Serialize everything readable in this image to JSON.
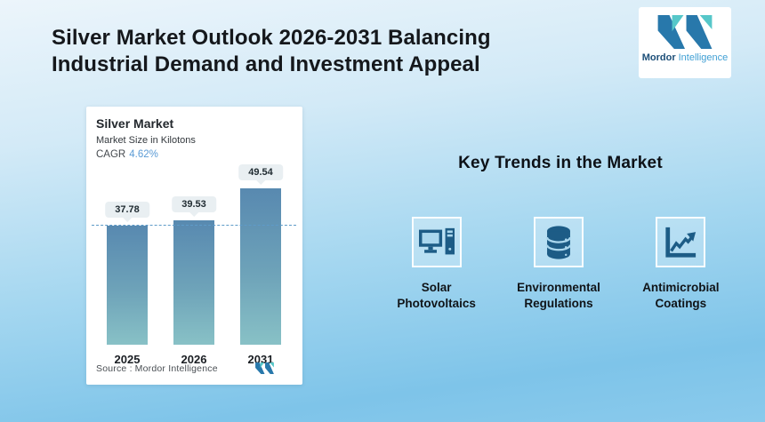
{
  "page": {
    "title_line1": "Silver Market Outlook 2026-2031 Balancing",
    "title_line2": "Industrial Demand and Investment Appeal"
  },
  "brand": {
    "name_bold": "Mordor",
    "name_light": "Intelligence",
    "logo_blue": "#2878ab",
    "logo_teal": "#56c7c9"
  },
  "chart_card": {
    "title": "Silver Market",
    "subtitle": "Market Size in Kilotons",
    "cagr_label": "CAGR",
    "cagr_value": "4.62%",
    "source_prefix": "Source :",
    "source_brand": "Mordor Intelligence"
  },
  "chart_data": {
    "type": "bar",
    "title": "Silver Market",
    "subtitle": "Market Size in Kilotons",
    "unit": "Kilotons",
    "cagr": "4.62%",
    "categories": [
      "2025",
      "2026",
      "2031"
    ],
    "values": [
      37.78,
      39.53,
      49.54
    ],
    "value_labels": [
      "37.78",
      "39.53",
      "49.54"
    ],
    "reference_line_value": 37.78,
    "ylim": [
      0,
      55
    ],
    "grid": false,
    "legend": "none",
    "bar_color_top": "#5889b0",
    "bar_color_bottom": "#88c1c6",
    "reference_line_color": "#5e9bc8"
  },
  "key_trends": {
    "heading": "Key Trends in the Market",
    "items": [
      {
        "icon": "computer-icon",
        "label_line1": "Solar",
        "label_line2": "Photovoltaics"
      },
      {
        "icon": "database-icon",
        "label_line1": "Environmental",
        "label_line2": "Regulations"
      },
      {
        "icon": "chart-icon",
        "label_line1": "Antimicrobial",
        "label_line2": "Coatings"
      }
    ]
  },
  "colors": {
    "background_top": "#ecf5fb",
    "background_bottom": "#7ec4e9",
    "title_text": "#15181c",
    "cagr_accent": "#5b9bd5",
    "icon_dark_blue": "#1d5c86",
    "pill_bg": "#e9eff2"
  }
}
